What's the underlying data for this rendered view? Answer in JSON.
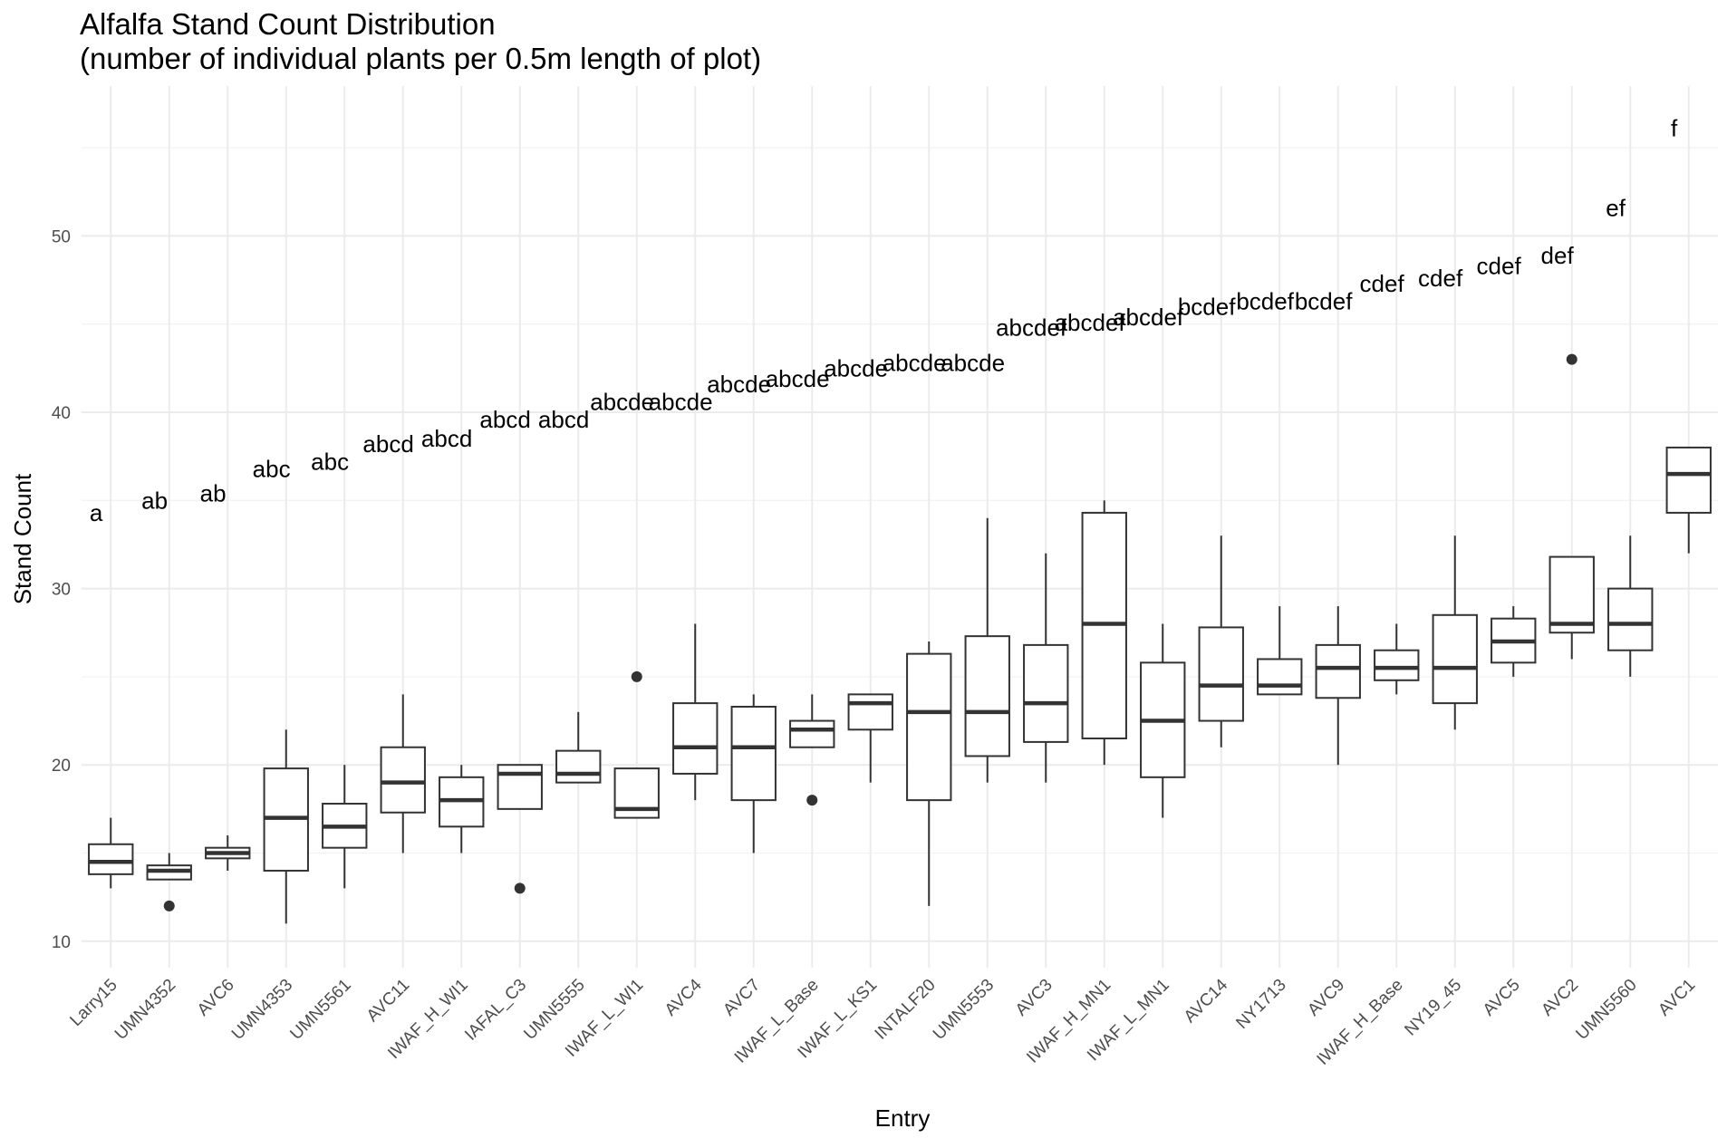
{
  "chart_data": {
    "type": "boxplot",
    "title": "Alfalfa Stand Count Distribution",
    "subtitle": "(number of individual plants per 0.5m length of plot)",
    "xlabel": "Entry",
    "ylabel": "Stand Count",
    "ylim": [
      8.5,
      58.5
    ],
    "yticks": [
      10,
      20,
      30,
      40,
      50
    ],
    "grid": true,
    "legend": "none",
    "colors": {
      "box": "#333333",
      "grid_major": "#ebebeb",
      "grid_minor": "#f2f2f2",
      "text": "#000000",
      "tick": "#4d4d4d"
    },
    "categories": [
      "Larry15",
      "UMN4352",
      "AVC6",
      "UMN4353",
      "UMN5561",
      "AVC11",
      "IWAF_H_WI1",
      "IAFAL_C3",
      "UMN5555",
      "IWAF_L_WI1",
      "AVC4",
      "AVC7",
      "IWAF_L_Base",
      "IWAF_L_KS1",
      "INTALF20",
      "UMN5553",
      "AVC3",
      "IWAF_H_MN1",
      "IWAF_L_MN1",
      "AVC14",
      "NY1713",
      "AVC9",
      "IWAF_H_Base",
      "NY19_45",
      "AVC5",
      "AVC2",
      "UMN5560",
      "AVC1"
    ],
    "boxes": [
      {
        "entry": "Larry15",
        "min": 13,
        "q1": 13.8,
        "median": 14.5,
        "q3": 15.5,
        "max": 17,
        "outliers": [],
        "letter": "a",
        "letter_y": 34.3
      },
      {
        "entry": "UMN4352",
        "min": 13.5,
        "q1": 13.5,
        "median": 14,
        "q3": 14.3,
        "max": 15,
        "outliers": [
          12
        ],
        "letter": "ab",
        "letter_y": 35
      },
      {
        "entry": "AVC6",
        "min": 14,
        "q1": 14.7,
        "median": 15,
        "q3": 15.3,
        "max": 16,
        "outliers": [],
        "letter": "ab",
        "letter_y": 35.4
      },
      {
        "entry": "UMN4353",
        "min": 11,
        "q1": 14,
        "median": 17,
        "q3": 19.8,
        "max": 22,
        "outliers": [],
        "letter": "abc",
        "letter_y": 36.8
      },
      {
        "entry": "UMN5561",
        "min": 13,
        "q1": 15.3,
        "median": 16.5,
        "q3": 17.8,
        "max": 20,
        "outliers": [],
        "letter": "abc",
        "letter_y": 37.2
      },
      {
        "entry": "AVC11",
        "min": 15,
        "q1": 17.3,
        "median": 19,
        "q3": 21,
        "max": 24,
        "outliers": [],
        "letter": "abcd",
        "letter_y": 38.2
      },
      {
        "entry": "IWAF_H_WI1",
        "min": 15,
        "q1": 16.5,
        "median": 18,
        "q3": 19.3,
        "max": 20,
        "outliers": [],
        "letter": "abcd",
        "letter_y": 38.5
      },
      {
        "entry": "IAFAL_C3",
        "min": 17.5,
        "q1": 17.5,
        "median": 19.5,
        "q3": 20,
        "max": 20,
        "outliers": [
          13
        ],
        "letter": "abcd",
        "letter_y": 39.6
      },
      {
        "entry": "UMN5555",
        "min": 19,
        "q1": 19,
        "median": 19.5,
        "q3": 20.8,
        "max": 23,
        "outliers": [],
        "letter": "abcd",
        "letter_y": 39.6
      },
      {
        "entry": "IWAF_L_WI1",
        "min": 17,
        "q1": 17,
        "median": 17.5,
        "q3": 19.8,
        "max": 19.8,
        "outliers": [
          25
        ],
        "letter": "abcde",
        "letter_y": 40.6
      },
      {
        "entry": "AVC4",
        "min": 18,
        "q1": 19.5,
        "median": 21,
        "q3": 23.5,
        "max": 28,
        "outliers": [],
        "letter": "abcde",
        "letter_y": 40.6
      },
      {
        "entry": "AVC7",
        "min": 15,
        "q1": 18,
        "median": 21,
        "q3": 23.3,
        "max": 24,
        "outliers": [],
        "letter": "abcde",
        "letter_y": 41.6
      },
      {
        "entry": "IWAF_L_Base",
        "min": 21,
        "q1": 21,
        "median": 22,
        "q3": 22.5,
        "max": 24,
        "outliers": [
          18
        ],
        "letter": "abcde",
        "letter_y": 41.9
      },
      {
        "entry": "IWAF_L_KS1",
        "min": 19,
        "q1": 22,
        "median": 23.5,
        "q3": 24,
        "max": 24,
        "outliers": [],
        "letter": "abcde",
        "letter_y": 42.5
      },
      {
        "entry": "INTALF20",
        "min": 12,
        "q1": 18,
        "median": 23,
        "q3": 26.3,
        "max": 27,
        "outliers": [],
        "letter": "abcde",
        "letter_y": 42.8
      },
      {
        "entry": "UMN5553",
        "min": 19,
        "q1": 20.5,
        "median": 23,
        "q3": 27.3,
        "max": 34,
        "outliers": [],
        "letter": "abcde",
        "letter_y": 42.8
      },
      {
        "entry": "AVC3",
        "min": 19,
        "q1": 21.3,
        "median": 23.5,
        "q3": 26.8,
        "max": 32,
        "outliers": [],
        "letter": "abcdef",
        "letter_y": 44.8
      },
      {
        "entry": "IWAF_H_MN1",
        "min": 20,
        "q1": 21.5,
        "median": 28,
        "q3": 34.3,
        "max": 35,
        "outliers": [],
        "letter": "abcdef",
        "letter_y": 45.1
      },
      {
        "entry": "IWAF_L_MN1",
        "min": 17,
        "q1": 19.3,
        "median": 22.5,
        "q3": 25.8,
        "max": 28,
        "outliers": [],
        "letter": "abcdef",
        "letter_y": 45.4
      },
      {
        "entry": "AVC14",
        "min": 21,
        "q1": 22.5,
        "median": 24.5,
        "q3": 27.8,
        "max": 33,
        "outliers": [],
        "letter": "bcdef",
        "letter_y": 46
      },
      {
        "entry": "NY1713",
        "min": 24,
        "q1": 24,
        "median": 24.5,
        "q3": 26,
        "max": 29,
        "outliers": [],
        "letter": "bcdef",
        "letter_y": 46.3
      },
      {
        "entry": "AVC9",
        "min": 20,
        "q1": 23.8,
        "median": 25.5,
        "q3": 26.8,
        "max": 29,
        "outliers": [],
        "letter": "bcdef",
        "letter_y": 46.3
      },
      {
        "entry": "IWAF_H_Base",
        "min": 24,
        "q1": 24.8,
        "median": 25.5,
        "q3": 26.5,
        "max": 28,
        "outliers": [],
        "letter": "cdef",
        "letter_y": 47.3
      },
      {
        "entry": "NY19_45",
        "min": 22,
        "q1": 23.5,
        "median": 25.5,
        "q3": 28.5,
        "max": 33,
        "outliers": [],
        "letter": "cdef",
        "letter_y": 47.6
      },
      {
        "entry": "AVC5",
        "min": 25,
        "q1": 25.8,
        "median": 27,
        "q3": 28.3,
        "max": 29,
        "outliers": [],
        "letter": "cdef",
        "letter_y": 48.3
      },
      {
        "entry": "AVC2",
        "min": 26,
        "q1": 27.5,
        "median": 28,
        "q3": 31.8,
        "max": 31.8,
        "outliers": [
          43
        ],
        "letter": "def",
        "letter_y": 48.9
      },
      {
        "entry": "UMN5560",
        "min": 25,
        "q1": 26.5,
        "median": 28,
        "q3": 30,
        "max": 33,
        "outliers": [],
        "letter": "ef",
        "letter_y": 51.6
      },
      {
        "entry": "AVC1",
        "min": 32,
        "q1": 34.3,
        "median": 36.5,
        "q3": 38,
        "max": 38,
        "outliers": [],
        "letter": "f",
        "letter_y": 56.1
      }
    ]
  }
}
